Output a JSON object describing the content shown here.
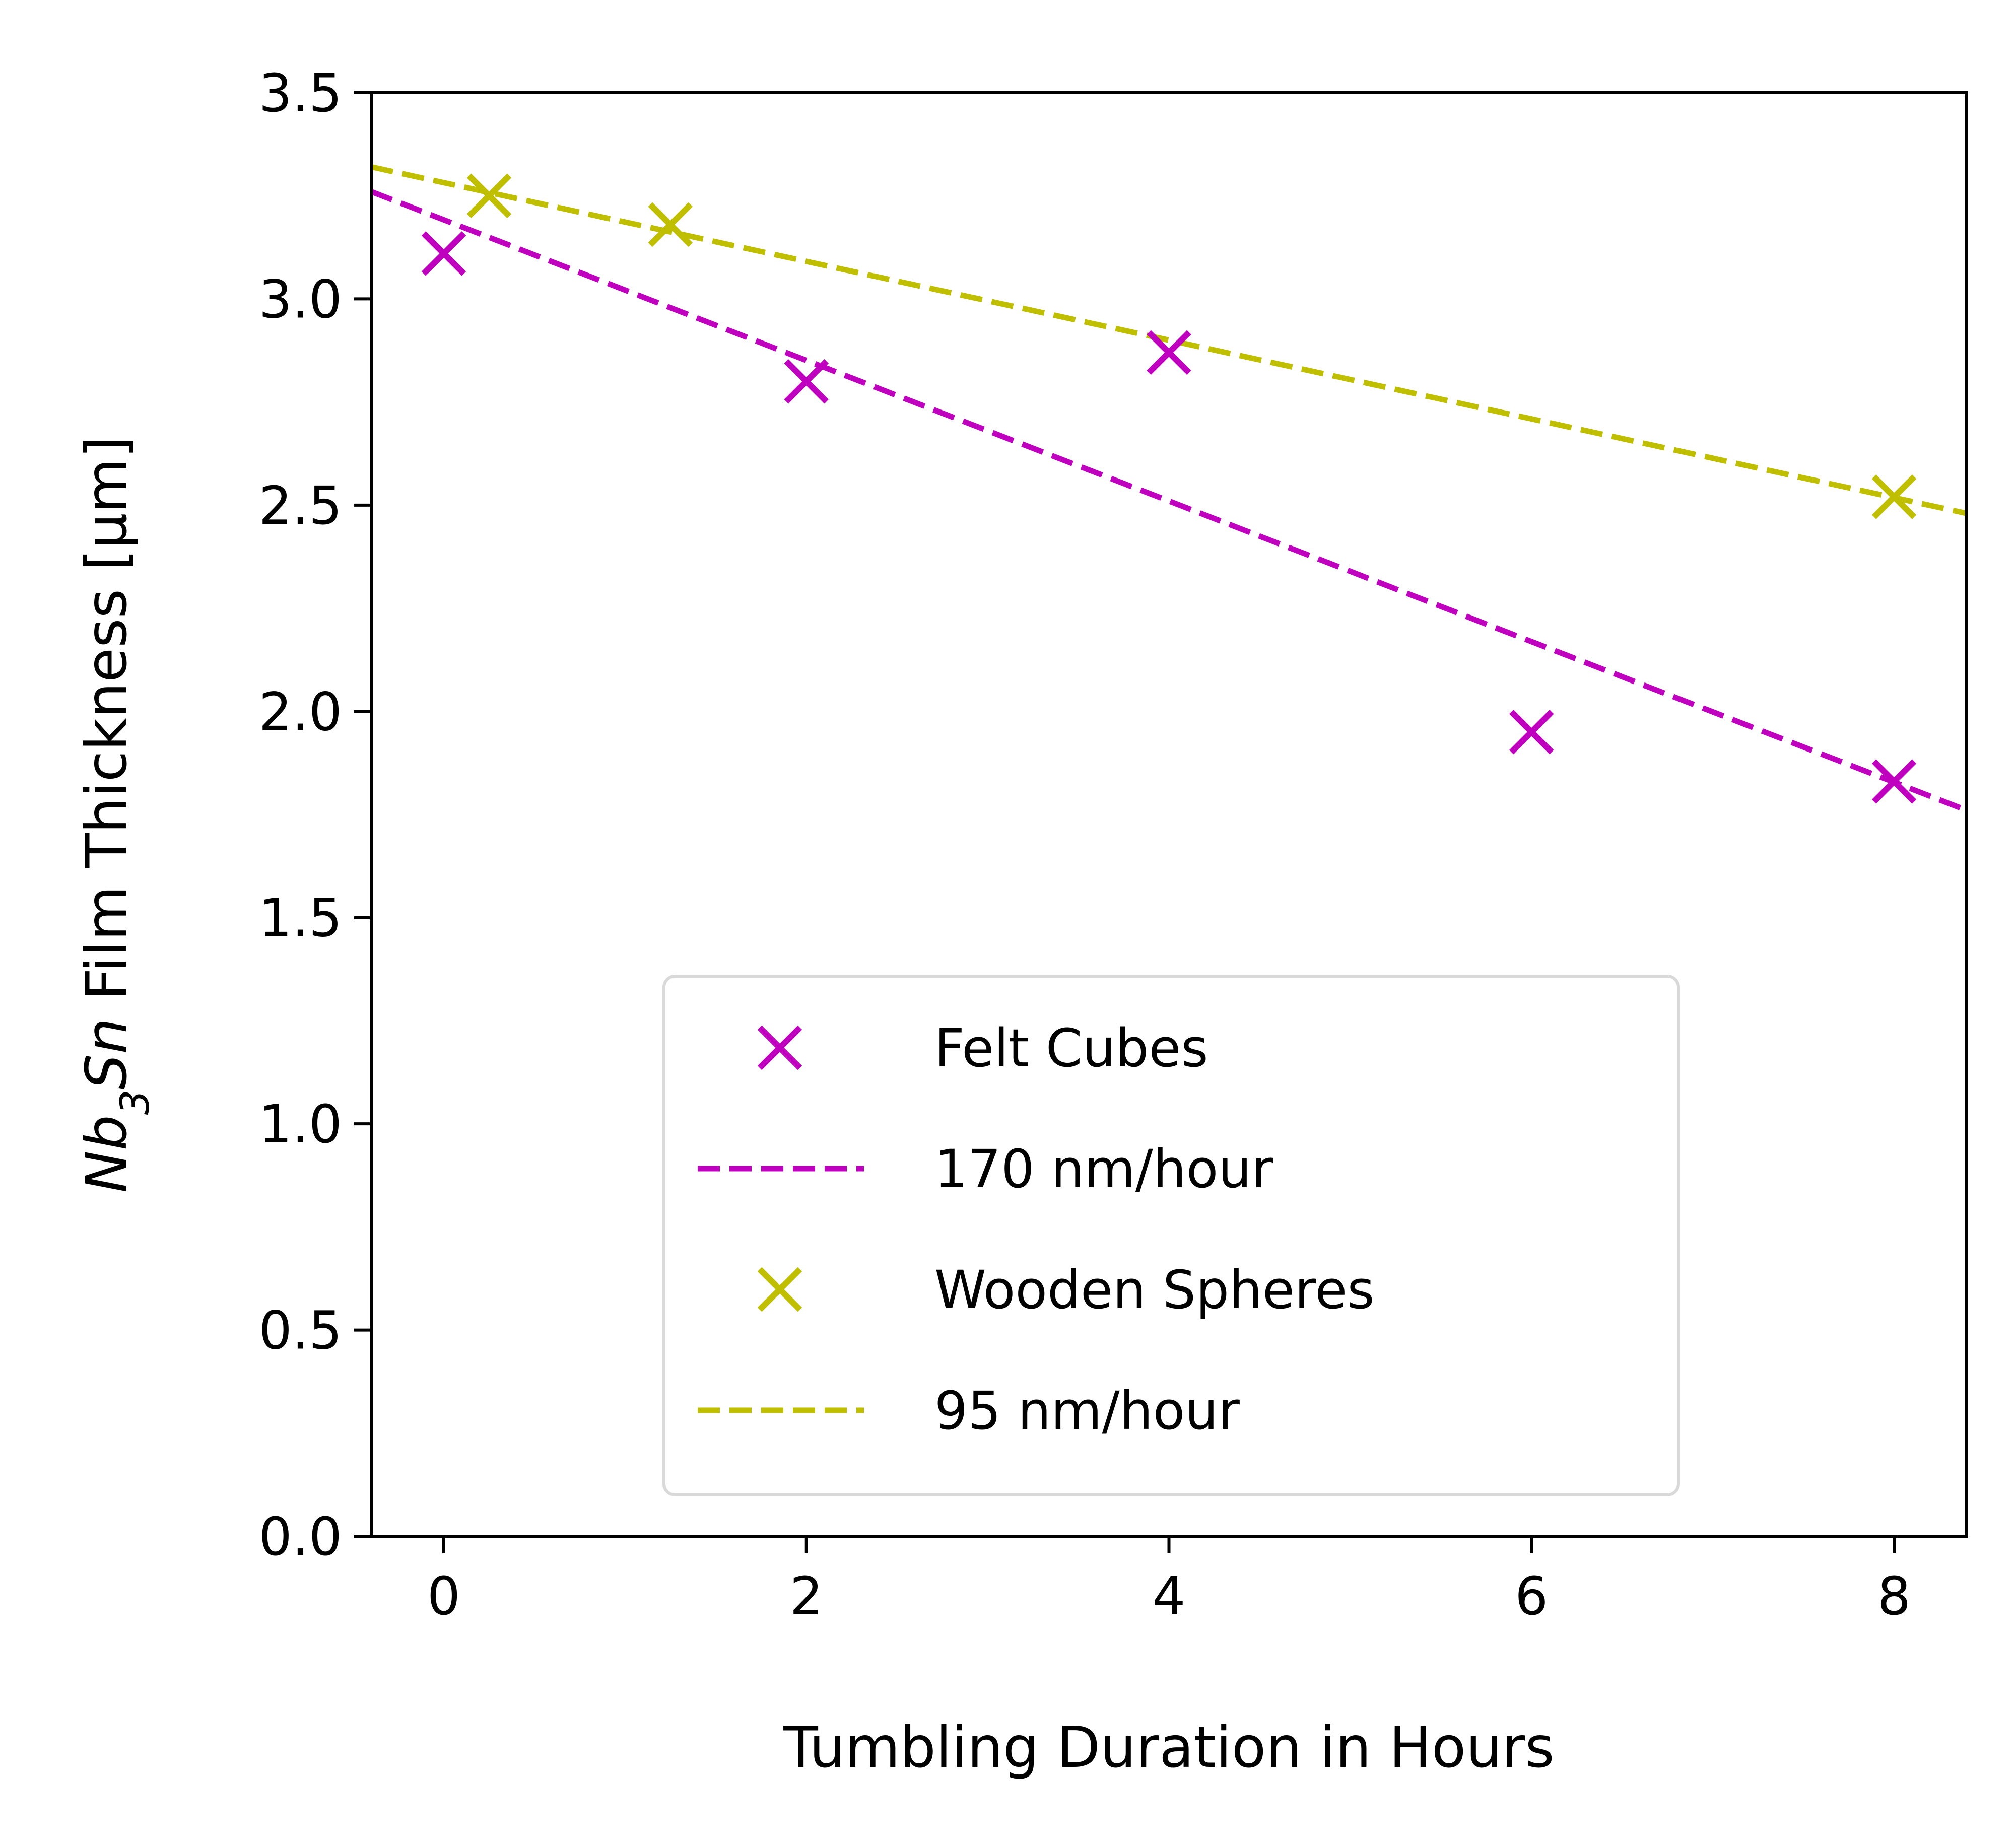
{
  "chart_data": {
    "type": "scatter",
    "xlabel": "Tumbling Duration in Hours",
    "ylabel": {
      "parts": [
        {
          "text": "Nb",
          "italic": true,
          "sub": false
        },
        {
          "text": "3",
          "italic": true,
          "sub": true
        },
        {
          "text": "Sn",
          "italic": true,
          "sub": false
        },
        {
          "text": " Film Thickness [μm]",
          "italic": false,
          "sub": false
        }
      ]
    },
    "xlim": [
      -0.4,
      8.4
    ],
    "ylim": [
      0.0,
      3.5
    ],
    "xticks": [
      0,
      2,
      4,
      6,
      8
    ],
    "xtick_labels": [
      "0",
      "2",
      "4",
      "6",
      "8"
    ],
    "yticks": [
      0.0,
      0.5,
      1.0,
      1.5,
      2.0,
      2.5,
      3.0,
      3.5
    ],
    "ytick_labels": [
      "0.0",
      "0.5",
      "1.0",
      "1.5",
      "2.0",
      "2.5",
      "3.0",
      "3.5"
    ],
    "grid": false,
    "legend_position": "lower-center",
    "series": [
      {
        "name": "Felt Cubes",
        "kind": "scatter",
        "marker": "x",
        "color": "#bf00bf",
        "x": [
          0,
          2,
          4,
          6,
          8
        ],
        "y": [
          3.11,
          2.8,
          2.87,
          1.95,
          1.83
        ]
      },
      {
        "name": "170 nm/hour",
        "kind": "line",
        "dash": true,
        "color": "#bf00bf",
        "x": [
          -0.4,
          8.4
        ],
        "y": [
          3.26,
          1.76
        ]
      },
      {
        "name": "Wooden Spheres",
        "kind": "scatter",
        "marker": "x",
        "color": "#bfbf00",
        "x": [
          0.25,
          1.25,
          8
        ],
        "y": [
          3.25,
          3.18,
          2.52
        ]
      },
      {
        "name": "95 nm/hour",
        "kind": "line",
        "dash": true,
        "color": "#bfbf00",
        "x": [
          -0.4,
          8.4
        ],
        "y": [
          3.32,
          2.48
        ]
      }
    ]
  }
}
